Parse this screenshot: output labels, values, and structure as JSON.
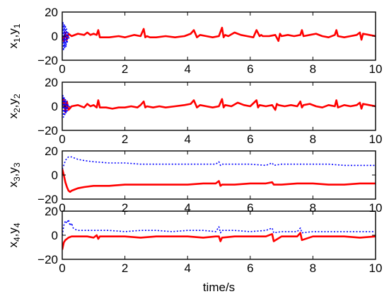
{
  "chart_data": [
    {
      "type": "line",
      "ylabel": {
        "a": "x",
        "a_sub": "1",
        "sep": ",",
        "b": "y",
        "b_sub": "1"
      },
      "xlim": [
        0,
        10
      ],
      "ylim": [
        -20,
        20
      ],
      "xticks": [
        0,
        2,
        4,
        6,
        8,
        10
      ],
      "yticks": [
        20,
        0,
        -20
      ],
      "xticklabels": [
        "0",
        "2",
        "4",
        "6",
        "8",
        "10"
      ],
      "yticklabels": [
        "20",
        "0",
        "−20"
      ],
      "grid": false,
      "series": [
        {
          "color": "#ff0000",
          "style": "solid",
          "x": [
            0,
            0.05,
            0.1,
            0.15,
            0.2,
            0.3,
            0.5,
            0.7,
            0.8,
            0.9,
            1.0,
            1.1,
            1.15,
            1.2,
            1.3,
            1.5,
            1.8,
            2.0,
            2.3,
            2.5,
            2.6,
            2.65,
            2.7,
            2.8,
            3.0,
            3.3,
            3.6,
            3.9,
            4.1,
            4.2,
            4.3,
            4.35,
            4.4,
            4.6,
            4.8,
            5.0,
            5.1,
            5.15,
            5.2,
            5.3,
            5.5,
            5.7,
            5.9,
            6.1,
            6.2,
            6.3,
            6.35,
            6.4,
            6.6,
            6.8,
            6.9,
            6.95,
            7.0,
            7.2,
            7.4,
            7.6,
            7.65,
            7.7,
            7.9,
            8.1,
            8.3,
            8.5,
            8.7,
            8.75,
            8.8,
            9.0,
            9.2,
            9.4,
            9.5,
            9.55,
            9.6,
            9.8,
            10.0
          ],
          "y": [
            0,
            -4,
            3,
            -3,
            2,
            0,
            2,
            1,
            3,
            1,
            2,
            1,
            5,
            -1,
            -1,
            -1,
            0,
            -1,
            1,
            0,
            6,
            -1,
            0,
            -1,
            -1,
            0,
            -1,
            0,
            2,
            5,
            -1,
            0,
            1,
            0,
            -1,
            0,
            7,
            -1,
            1,
            0,
            3,
            1,
            0,
            -1,
            5,
            0,
            1,
            0,
            0,
            1,
            -4,
            2,
            0,
            1,
            0,
            1,
            5,
            0,
            1,
            2,
            0,
            -1,
            1,
            5,
            0,
            -1,
            0,
            1,
            3,
            -3,
            2,
            1,
            0
          ]
        },
        {
          "color": "#0000ff",
          "style": "dotted",
          "x": [
            0,
            0.02,
            0.04,
            0.06,
            0.08,
            0.1,
            0.12,
            0.14,
            0.16,
            0.18,
            0.2,
            0.25
          ],
          "y": [
            0,
            12,
            -12,
            10,
            -10,
            9,
            -9,
            6,
            -6,
            3,
            -2,
            0
          ]
        }
      ]
    },
    {
      "type": "line",
      "ylabel": {
        "a": "x",
        "a_sub": "2",
        "sep": ",",
        "b": "y",
        "b_sub": "2"
      },
      "xlim": [
        0,
        10
      ],
      "ylim": [
        -20,
        20
      ],
      "xticks": [
        0,
        2,
        4,
        6,
        8,
        10
      ],
      "yticks": [
        20,
        0,
        -20
      ],
      "xticklabels": [
        "0",
        "2",
        "4",
        "6",
        "8",
        "10"
      ],
      "yticklabels": [
        "20",
        "0",
        "−20"
      ],
      "grid": false,
      "series": [
        {
          "color": "#ff0000",
          "style": "solid",
          "x": [
            0,
            0.05,
            0.1,
            0.15,
            0.2,
            0.3,
            0.5,
            0.7,
            0.8,
            0.9,
            1.0,
            1.1,
            1.15,
            1.2,
            1.4,
            1.6,
            1.8,
            2.0,
            2.2,
            2.4,
            2.5,
            2.6,
            2.65,
            2.7,
            2.9,
            3.1,
            3.3,
            3.6,
            3.9,
            4.1,
            4.2,
            4.3,
            4.35,
            4.4,
            4.6,
            4.8,
            5.0,
            5.1,
            5.15,
            5.2,
            5.4,
            5.6,
            5.8,
            6.0,
            6.2,
            6.25,
            6.3,
            6.5,
            6.7,
            6.8,
            6.85,
            6.9,
            7.1,
            7.3,
            7.5,
            7.6,
            7.65,
            7.7,
            7.9,
            8.1,
            8.3,
            8.5,
            8.7,
            8.75,
            8.8,
            9.0,
            9.2,
            9.4,
            9.5,
            9.55,
            9.6,
            9.8,
            10.0
          ],
          "y": [
            0,
            6,
            -5,
            4,
            -3,
            0,
            1,
            -1,
            2,
            0,
            1,
            -1,
            5,
            -1,
            -1,
            -2,
            -1,
            -1,
            0,
            -1,
            1,
            4,
            -1,
            0,
            -1,
            0,
            -1,
            0,
            1,
            2,
            5,
            -1,
            0,
            1,
            0,
            -1,
            0,
            6,
            -1,
            1,
            0,
            3,
            1,
            0,
            5,
            -1,
            1,
            0,
            1,
            -3,
            2,
            1,
            0,
            1,
            0,
            4,
            -1,
            1,
            2,
            0,
            -1,
            1,
            0,
            5,
            -1,
            1,
            0,
            1,
            3,
            -2,
            2,
            1,
            0
          ]
        },
        {
          "color": "#0000ff",
          "style": "dotted",
          "x": [
            0,
            0.02,
            0.04,
            0.06,
            0.08,
            0.1,
            0.12,
            0.14,
            0.16,
            0.18,
            0.2,
            0.25
          ],
          "y": [
            0,
            9,
            -9,
            8,
            -8,
            6,
            -6,
            4,
            -4,
            2,
            -1,
            0
          ]
        }
      ]
    },
    {
      "type": "line",
      "ylabel": {
        "a": "x",
        "a_sub": "3",
        "sep": ",",
        "b": "y",
        "b_sub": "3"
      },
      "xlim": [
        0,
        10
      ],
      "ylim": [
        -20,
        20
      ],
      "xticks": [
        0,
        2,
        4,
        6,
        8,
        10
      ],
      "yticks": [
        20,
        0,
        -20
      ],
      "xticklabels": [
        "0",
        "2",
        "4",
        "6",
        "8",
        "10"
      ],
      "yticklabels": [
        "20",
        "0",
        "−20"
      ],
      "grid": false,
      "series": [
        {
          "color": "#ff0000",
          "style": "solid",
          "x": [
            0,
            0.05,
            0.1,
            0.15,
            0.2,
            0.25,
            0.3,
            0.4,
            0.5,
            0.7,
            1.0,
            1.5,
            2.0,
            2.5,
            3.0,
            3.5,
            4.0,
            4.5,
            4.9,
            5.0,
            5.05,
            5.1,
            5.5,
            6.0,
            6.5,
            6.7,
            6.75,
            7.0,
            7.5,
            8.0,
            8.5,
            9.0,
            9.5,
            10.0
          ],
          "y": [
            5,
            0,
            -6,
            -10,
            -13,
            -14,
            -13,
            -12,
            -11,
            -10,
            -9,
            -9,
            -8,
            -8,
            -8,
            -8,
            -8,
            -7,
            -7,
            -5,
            -9,
            -8,
            -8,
            -7,
            -7,
            -6,
            -8,
            -8,
            -7,
            -7,
            -8,
            -8,
            -7,
            -7
          ]
        },
        {
          "color": "#0000ff",
          "style": "dotted",
          "x": [
            0,
            0.05,
            0.1,
            0.15,
            0.2,
            0.25,
            0.3,
            0.4,
            0.5,
            0.7,
            1.0,
            1.5,
            2.0,
            2.5,
            3.0,
            3.5,
            4.0,
            4.5,
            4.9,
            5.0,
            5.05,
            5.1,
            5.5,
            6.0,
            6.5,
            6.7,
            6.75,
            7.0,
            7.5,
            8.0,
            8.5,
            9.0,
            9.5,
            10.0
          ],
          "y": [
            5,
            8,
            12,
            14,
            15,
            15,
            15,
            14,
            13,
            12,
            11,
            10,
            10,
            9,
            9,
            9,
            9,
            9,
            9,
            11,
            8,
            9,
            9,
            9,
            8,
            10,
            8,
            9,
            9,
            9,
            9,
            8,
            8,
            8
          ]
        }
      ]
    },
    {
      "type": "line",
      "ylabel": {
        "a": "x",
        "a_sub": "4",
        "sep": ",",
        "b": "y",
        "b_sub": "4"
      },
      "xlabel": "time/s",
      "xlim": [
        0,
        10
      ],
      "ylim": [
        -20,
        20
      ],
      "xticks": [
        0,
        2,
        4,
        6,
        8,
        10
      ],
      "yticks": [
        20,
        0,
        -20
      ],
      "xticklabels": [
        "0",
        "2",
        "4",
        "6",
        "8",
        "10"
      ],
      "yticklabels": [
        "20",
        "0",
        "−20"
      ],
      "grid": false,
      "series": [
        {
          "color": "#ff0000",
          "style": "solid",
          "x": [
            0,
            0.05,
            0.1,
            0.15,
            0.2,
            0.3,
            0.5,
            0.8,
            1.0,
            1.1,
            1.15,
            1.2,
            1.5,
            2.0,
            2.5,
            3.0,
            3.5,
            4.0,
            4.5,
            4.9,
            5.0,
            5.05,
            5.1,
            5.5,
            6.0,
            6.5,
            6.7,
            6.75,
            7.0,
            7.5,
            7.6,
            7.65,
            8.0,
            8.5,
            9.0,
            9.5,
            10.0
          ],
          "y": [
            -12,
            -6,
            -4,
            -3,
            -2,
            -1,
            -1,
            -1,
            -2,
            0,
            -3,
            -1,
            -1,
            -1,
            -2,
            -1,
            -1,
            -1,
            -2,
            -1,
            -1,
            -5,
            -2,
            -1,
            -1,
            -1,
            1,
            -5,
            -1,
            -1,
            2,
            -4,
            -1,
            -1,
            -1,
            -2,
            -1
          ]
        },
        {
          "color": "#0000ff",
          "style": "dotted",
          "x": [
            0,
            0.05,
            0.1,
            0.15,
            0.2,
            0.25,
            0.3,
            0.35,
            0.4,
            0.5,
            0.7,
            1.0,
            1.5,
            2.0,
            2.5,
            3.0,
            3.5,
            4.0,
            4.5,
            4.9,
            5.0,
            5.05,
            5.1,
            5.5,
            6.0,
            6.5,
            6.7,
            6.75,
            7.0,
            7.5,
            7.6,
            7.65,
            8.0,
            8.5,
            9.0,
            9.5,
            10.0
          ],
          "y": [
            0,
            8,
            12,
            10,
            13,
            8,
            10,
            6,
            5,
            4,
            4,
            4,
            4,
            3,
            4,
            4,
            3,
            4,
            4,
            3,
            7,
            2,
            4,
            4,
            3,
            4,
            6,
            2,
            3,
            3,
            6,
            2,
            3,
            3,
            3,
            3,
            3
          ]
        }
      ]
    }
  ]
}
